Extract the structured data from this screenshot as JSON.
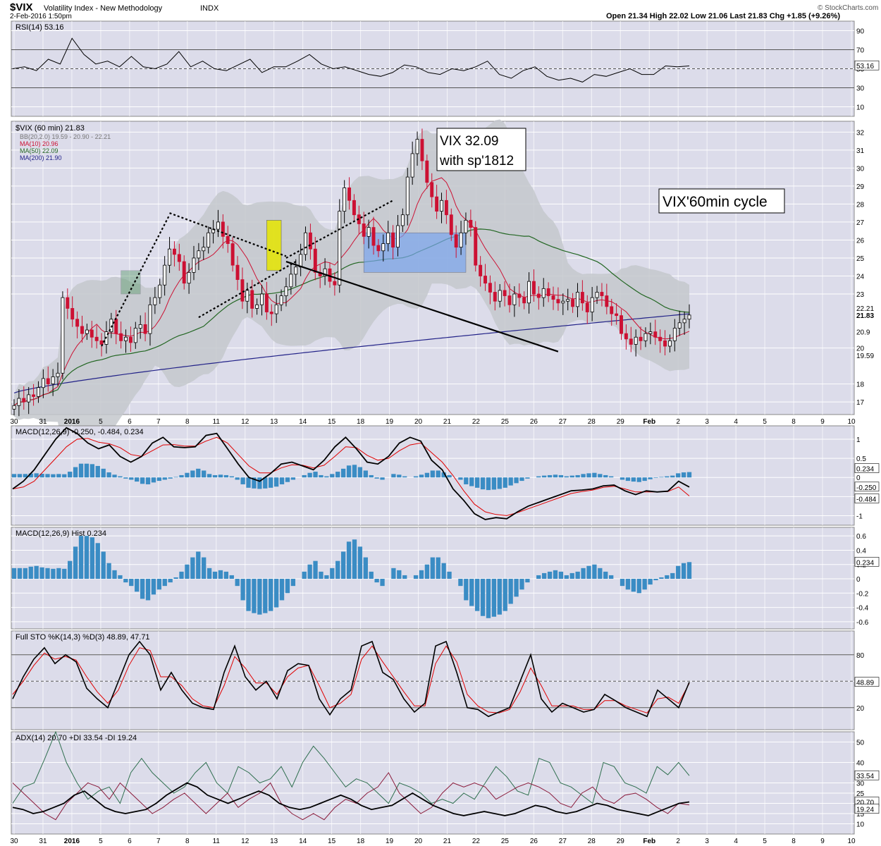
{
  "header": {
    "symbol": "$VIX",
    "name": "Volatility Index - New Methodology",
    "exchange": "INDX",
    "datetime": "2-Feb-2016 1:50pm",
    "quote": "Open 21.34  High 22.02  Low 21.06  Last 21.83  Chg +1.85 (+9.26%)",
    "watermark": "© StockCharts.com"
  },
  "x_labels": [
    "30",
    "31",
    "2016",
    "5",
    "6",
    "7",
    "8",
    "11",
    "12",
    "13",
    "14",
    "15",
    "18",
    "19",
    "20",
    "21",
    "22",
    "25",
    "26",
    "27",
    "28",
    "29",
    "Feb",
    "2",
    "3",
    "4",
    "5",
    "8",
    "9",
    "10"
  ],
  "colors": {
    "panel_bg": "#dcdcea",
    "grid": "#ffffff",
    "up": "#ffffff",
    "down": "#cc1133",
    "ma10": "#cc1133",
    "ma50": "#226622",
    "ma200": "#222288",
    "bb_fill": "#c4c8cc",
    "macd_hist": "#3a8cc4",
    "black": "#000000",
    "red": "#e00000"
  },
  "chart_data": [
    {
      "type": "line",
      "title": "RSI(14) 53.16",
      "yticks": [
        10,
        30,
        50,
        70,
        90
      ],
      "ylim": [
        0,
        100
      ],
      "levels": [
        70,
        30
      ],
      "last_label": "53.16",
      "series": [
        {
          "name": "RSI(14)",
          "values": [
            50,
            52,
            48,
            60,
            55,
            82,
            65,
            55,
            58,
            52,
            63,
            52,
            50,
            55,
            68,
            52,
            58,
            50,
            48,
            54,
            60,
            46,
            52,
            52,
            58,
            65,
            55,
            50,
            52,
            48,
            44,
            42,
            46,
            54,
            52,
            46,
            44,
            50,
            48,
            52,
            58,
            44,
            40,
            48,
            52,
            42,
            38,
            40,
            36,
            44,
            42,
            46,
            50,
            44,
            44,
            53,
            52,
            53
          ]
        }
      ]
    },
    {
      "type": "candlestick",
      "title": "$VIX (60 min) 21.83",
      "legend": [
        "BB(20,2.0) 19.59 - 20.90 - 22.21",
        "MA(10) 20.96",
        "MA(50) 22.09",
        "MA(200) 21.90"
      ],
      "ylabel_ticks": [
        17,
        18,
        19.59,
        20,
        20.9,
        21.83,
        22.21,
        23,
        24,
        25,
        26,
        27,
        28,
        29,
        30,
        31,
        32
      ],
      "ylim": [
        16.3,
        32.6
      ],
      "annotations": [
        "VIX 32.09\nwith sp'1812",
        "VIX'60min cycle"
      ],
      "close": [
        16.8,
        17.2,
        17.0,
        17.4,
        17.3,
        17.8,
        18.3,
        18.0,
        18.4,
        18.6,
        22.8,
        22.2,
        21.6,
        21.2,
        20.8,
        21.0,
        20.6,
        20.4,
        20.2,
        20.9,
        21.6,
        20.8,
        20.4,
        20.6,
        20.3,
        21.1,
        21.3,
        20.8,
        22.4,
        22.8,
        23.5,
        24.6,
        25.5,
        25.2,
        24.8,
        23.6,
        24.2,
        25.0,
        25.4,
        25.6,
        26.4,
        26.6,
        27.0,
        26.2,
        25.8,
        24.6,
        23.8,
        22.6,
        23.2,
        22.2,
        22.4,
        23.0,
        22.0,
        21.9,
        22.4,
        22.9,
        23.4,
        24.1,
        24.5,
        25.2,
        26.4,
        25.5,
        24.2,
        24.0,
        24.4,
        23.7,
        23.5,
        27.6,
        28.9,
        28.2,
        27.4,
        26.9,
        26.2,
        26.7,
        25.7,
        25.4,
        25.8,
        26.4,
        25.6,
        26.8,
        27.4,
        29.5,
        30.8,
        31.6,
        30.4,
        29.2,
        28.4,
        27.6,
        28.2,
        27.4,
        26.3,
        25.6,
        26.4,
        27.1,
        26.7,
        24.6,
        24.0,
        23.6,
        23.1,
        22.6,
        23.2,
        22.9,
        22.4,
        23.0,
        22.8,
        22.5,
        23.7,
        23.0,
        22.8,
        23.3,
        22.9,
        22.7,
        22.5,
        22.6,
        22.7,
        22.3,
        23.1,
        22.5,
        22.0,
        22.8,
        23.1,
        22.9,
        22.3,
        21.9,
        21.8,
        20.8,
        20.5,
        20.2,
        20.6,
        20.4,
        20.8,
        20.9,
        20.6,
        20.4,
        20.1,
        20.4,
        21.1,
        21.4,
        21.6,
        21.83
      ]
    },
    {
      "type": "line",
      "title": "MACD(12,26,9) -0.250, -0.484, 0.234",
      "yticks": [
        -1.0,
        -0.5,
        0.0,
        0.5,
        1.0
      ],
      "ylim": [
        -1.25,
        1.35
      ],
      "last_labels": [
        "0.234",
        "-0.250",
        "-0.484"
      ],
      "series": [
        {
          "name": "MACD",
          "values": [
            -0.3,
            -0.1,
            0.2,
            0.6,
            1.0,
            1.3,
            1.15,
            0.9,
            0.75,
            0.85,
            0.55,
            0.4,
            0.55,
            0.9,
            1.05,
            0.8,
            0.78,
            0.8,
            1.1,
            1.15,
            0.75,
            0.35,
            0.0,
            -0.1,
            0.1,
            0.35,
            0.4,
            0.3,
            0.2,
            0.45,
            0.8,
            1.05,
            0.75,
            0.4,
            0.35,
            0.55,
            0.9,
            1.05,
            0.95,
            0.45,
            0.2,
            -0.3,
            -0.6,
            -0.95,
            -1.1,
            -1.05,
            -1.08,
            -0.9,
            -0.75,
            -0.65,
            -0.55,
            -0.45,
            -0.35,
            -0.33,
            -0.3,
            -0.22,
            -0.2,
            -0.35,
            -0.45,
            -0.35,
            -0.38,
            -0.36,
            -0.1,
            -0.25
          ]
        },
        {
          "name": "Signal",
          "values": [
            -0.3,
            -0.25,
            -0.1,
            0.2,
            0.5,
            0.8,
            1.0,
            1.02,
            0.92,
            0.88,
            0.78,
            0.6,
            0.55,
            0.7,
            0.85,
            0.86,
            0.82,
            0.82,
            0.95,
            1.05,
            0.9,
            0.6,
            0.3,
            0.12,
            0.12,
            0.25,
            0.33,
            0.32,
            0.25,
            0.32,
            0.55,
            0.8,
            0.78,
            0.58,
            0.45,
            0.5,
            0.7,
            0.85,
            0.9,
            0.65,
            0.4,
            0.05,
            -0.35,
            -0.7,
            -0.9,
            -0.97,
            -1.0,
            -0.92,
            -0.82,
            -0.72,
            -0.62,
            -0.52,
            -0.42,
            -0.37,
            -0.33,
            -0.26,
            -0.23,
            -0.3,
            -0.38,
            -0.38,
            -0.38,
            -0.37,
            -0.25,
            -0.484
          ]
        }
      ]
    },
    {
      "type": "bar",
      "title": "MACD(12,26,9) Hist 0.234",
      "yticks": [
        -0.6,
        -0.4,
        -0.2,
        0.0,
        0.2,
        0.4,
        0.6
      ],
      "ylim": [
        -0.7,
        0.72
      ],
      "last_label": "0.234",
      "values": [
        0.15,
        0.15,
        0.15,
        0.17,
        0.18,
        0.16,
        0.15,
        0.14,
        0.15,
        0.14,
        0.25,
        0.45,
        0.6,
        0.6,
        0.58,
        0.5,
        0.38,
        0.22,
        0.12,
        0.05,
        -0.05,
        -0.1,
        -0.18,
        -0.28,
        -0.3,
        -0.22,
        -0.15,
        -0.1,
        -0.05,
        0.02,
        0.1,
        0.2,
        0.3,
        0.38,
        0.3,
        0.15,
        0.1,
        0.12,
        0.1,
        0.05,
        -0.1,
        -0.3,
        -0.45,
        -0.48,
        -0.5,
        -0.48,
        -0.45,
        -0.4,
        -0.3,
        -0.2,
        -0.1,
        0.0,
        0.1,
        0.2,
        0.25,
        0.1,
        0.05,
        0.15,
        0.25,
        0.38,
        0.52,
        0.55,
        0.45,
        0.3,
        0.1,
        -0.05,
        -0.1,
        0.0,
        0.15,
        0.12,
        0.05,
        0.0,
        0.05,
        0.12,
        0.2,
        0.3,
        0.3,
        0.22,
        0.1,
        0.0,
        -0.1,
        -0.3,
        -0.38,
        -0.45,
        -0.52,
        -0.55,
        -0.53,
        -0.5,
        -0.45,
        -0.35,
        -0.25,
        -0.15,
        -0.05,
        0.0,
        0.05,
        0.08,
        0.1,
        0.12,
        0.1,
        0.05,
        0.08,
        0.1,
        0.15,
        0.18,
        0.2,
        0.15,
        0.1,
        0.05,
        0.0,
        -0.1,
        -0.15,
        -0.18,
        -0.2,
        -0.15,
        -0.08,
        -0.02,
        0.02,
        0.05,
        0.08,
        0.18,
        0.22,
        0.234
      ]
    },
    {
      "type": "line",
      "title": "Full STO %K(14,3) %D(3) 48.89, 47.71",
      "yticks": [
        20,
        50,
        80
      ],
      "ylim": [
        -5,
        107
      ],
      "levels": [
        80,
        20
      ],
      "last_label": "48.89",
      "series": [
        {
          "name": "%K",
          "values": [
            30,
            55,
            75,
            88,
            70,
            80,
            72,
            42,
            30,
            20,
            50,
            80,
            95,
            80,
            40,
            60,
            40,
            25,
            20,
            18,
            60,
            90,
            55,
            40,
            50,
            30,
            62,
            70,
            68,
            30,
            12,
            30,
            40,
            90,
            95,
            60,
            52,
            30,
            15,
            25,
            90,
            95,
            60,
            20,
            18,
            10,
            15,
            20,
            50,
            80,
            30,
            15,
            25,
            20,
            15,
            18,
            35,
            28,
            20,
            15,
            10,
            40,
            30,
            20,
            48.89
          ]
        },
        {
          "name": "%D",
          "values": [
            35,
            50,
            68,
            82,
            75,
            78,
            74,
            55,
            38,
            25,
            40,
            68,
            88,
            85,
            55,
            55,
            45,
            30,
            22,
            20,
            45,
            78,
            65,
            48,
            48,
            35,
            55,
            65,
            68,
            45,
            20,
            25,
            35,
            75,
            90,
            72,
            55,
            38,
            22,
            22,
            70,
            90,
            72,
            35,
            22,
            15,
            14,
            18,
            38,
            65,
            45,
            22,
            22,
            22,
            18,
            18,
            28,
            28,
            22,
            18,
            14,
            30,
            32,
            25,
            47.71
          ]
        }
      ]
    },
    {
      "type": "line",
      "title": "ADX(14) 20.70 +DI 33.54 -DI 19.24",
      "yticks": [
        10,
        15,
        20,
        25,
        30,
        40,
        50
      ],
      "ylim": [
        5,
        55
      ],
      "last_labels": [
        "33.54",
        "20.70",
        "19.24"
      ],
      "series": [
        {
          "name": "ADX(14)",
          "values": [
            18,
            17,
            15,
            16,
            18,
            20,
            24,
            26,
            22,
            18,
            16,
            15,
            16,
            17,
            20,
            24,
            27,
            30,
            28,
            24,
            22,
            20,
            22,
            24,
            26,
            24,
            20,
            18,
            17,
            18,
            20,
            22,
            24,
            22,
            19,
            17,
            18,
            19,
            22,
            25,
            22,
            19,
            17,
            15,
            14,
            15,
            16,
            15,
            14,
            15,
            17,
            19,
            18,
            16,
            15,
            16,
            18,
            20,
            19,
            17,
            16,
            15,
            14,
            16,
            18,
            20,
            20.7
          ]
        },
        {
          "name": "+DI",
          "values": [
            20,
            28,
            30,
            42,
            55,
            40,
            30,
            22,
            26,
            28,
            20,
            35,
            42,
            35,
            30,
            25,
            28,
            35,
            40,
            30,
            25,
            38,
            35,
            30,
            32,
            38,
            28,
            40,
            48,
            42,
            35,
            28,
            32,
            30,
            25,
            20,
            30,
            28,
            25,
            20,
            22,
            20,
            25,
            22,
            30,
            38,
            33,
            26,
            24,
            42,
            40,
            30,
            28,
            24,
            20,
            40,
            38,
            30,
            28,
            25,
            38,
            34,
            40,
            33.54
          ]
        },
        {
          "name": "-DI",
          "values": [
            30,
            25,
            20,
            15,
            12,
            20,
            25,
            30,
            28,
            22,
            30,
            25,
            20,
            15,
            18,
            22,
            25,
            20,
            15,
            20,
            25,
            18,
            22,
            25,
            30,
            20,
            15,
            12,
            15,
            12,
            18,
            22,
            20,
            25,
            28,
            35,
            25,
            20,
            15,
            18,
            25,
            30,
            28,
            30,
            28,
            22,
            25,
            28,
            30,
            28,
            25,
            20,
            18,
            25,
            28,
            22,
            20,
            24,
            25,
            22,
            18,
            15,
            20,
            19.24
          ]
        }
      ]
    }
  ]
}
